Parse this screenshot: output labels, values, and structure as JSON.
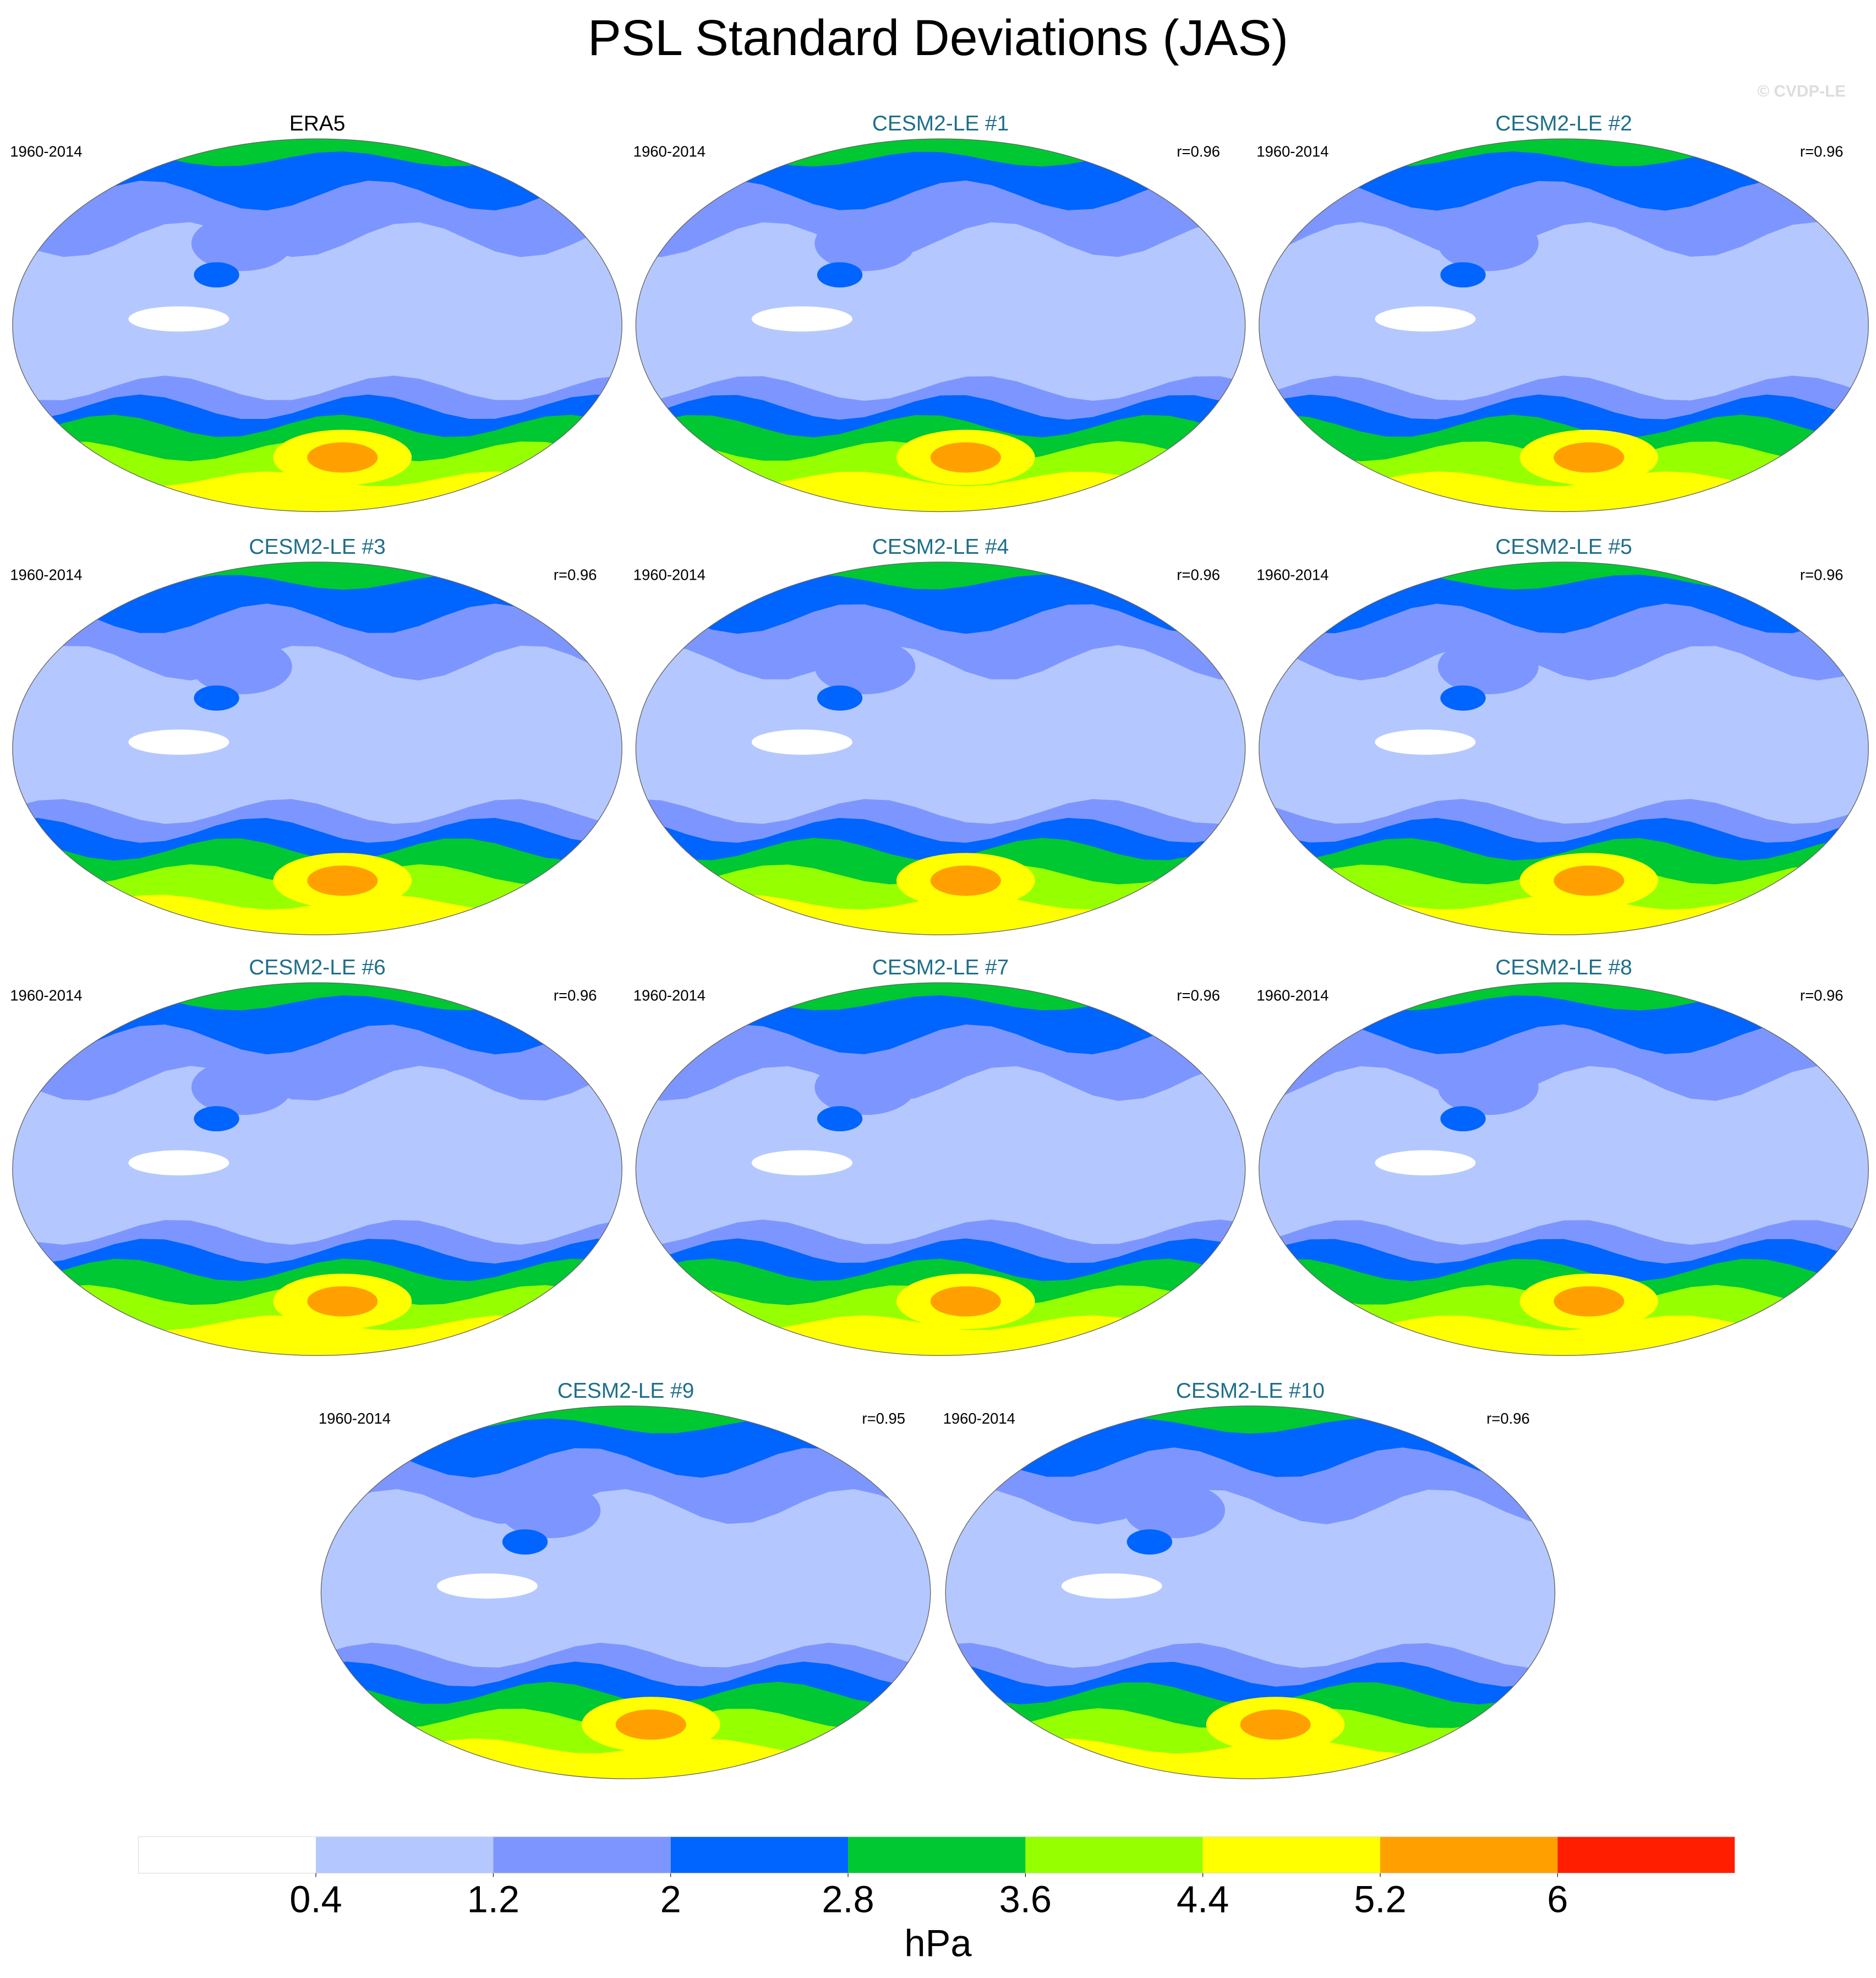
{
  "title": "PSL Standard Deviations (JAS)",
  "watermark": "© CVDP-LE",
  "panels": [
    {
      "title": "ERA5",
      "period": "1960-2014"
    },
    {
      "title": "CESM2-LE #1",
      "period": "1960-2014",
      "r": "r=0.96"
    },
    {
      "title": "CESM2-LE #2",
      "period": "1960-2014",
      "r": "r=0.96"
    },
    {
      "title": "CESM2-LE #3",
      "period": "1960-2014",
      "r": "r=0.96"
    },
    {
      "title": "CESM2-LE #4",
      "period": "1960-2014",
      "r": "r=0.96"
    },
    {
      "title": "CESM2-LE #5",
      "period": "1960-2014",
      "r": "r=0.96"
    },
    {
      "title": "CESM2-LE #6",
      "period": "1960-2014",
      "r": "r=0.96"
    },
    {
      "title": "CESM2-LE #7",
      "period": "1960-2014",
      "r": "r=0.96"
    },
    {
      "title": "CESM2-LE #8",
      "period": "1960-2014",
      "r": "r=0.96"
    },
    {
      "title": "CESM2-LE #9",
      "period": "1960-2014",
      "r": "r=0.95"
    },
    {
      "title": "CESM2-LE #10",
      "period": "1960-2014",
      "r": "r=0.96"
    }
  ],
  "colorbar": {
    "levels": [
      0.4,
      1.2,
      2,
      2.8,
      3.6,
      4.4,
      5.2,
      6
    ],
    "colors": [
      "#ffffff",
      "#b4c8ff",
      "#7d96ff",
      "#0064ff",
      "#00c832",
      "#96ff00",
      "#ffff00",
      "#ffa000",
      "#ff1e00"
    ],
    "unit": "hPa"
  }
}
